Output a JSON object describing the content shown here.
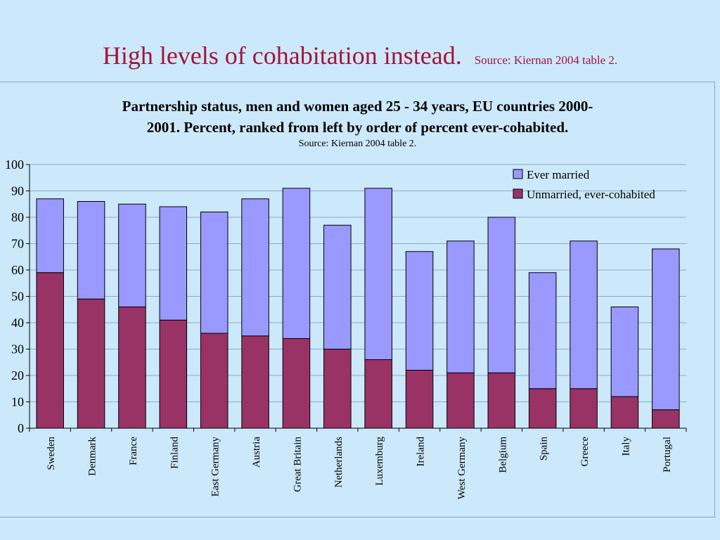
{
  "slide": {
    "title": "High levels of cohabitation instead.",
    "source": "Source: Kiernan 2004 table 2."
  },
  "colors": {
    "background": "#cce9fb",
    "title": "#a3143c",
    "ever_married": "#9999ff",
    "unmarried_cohabited": "#993366"
  },
  "chart_data": {
    "type": "bar",
    "stacked": true,
    "title": "Partnership status, men and women aged 25 - 34 years, EU countries 2000-2001. Percent, ranked from left by order of percent ever-cohabited.",
    "title_lines": [
      "Partnership status, men and women aged 25 - 34 years, EU countries 2000-",
      "2001. Percent, ranked from left by order of percent ever-cohabited."
    ],
    "subtitle": "Source: Kiernan 2004 table 2.",
    "xlabel": "",
    "ylabel": "",
    "ylim": [
      0,
      100
    ],
    "yticks": [
      0,
      10,
      20,
      30,
      40,
      50,
      60,
      70,
      80,
      90,
      100
    ],
    "grid": true,
    "legend_position": "top-right",
    "categories": [
      "Sweden",
      "Denmark",
      "France",
      "Finland",
      "East Germany",
      "Austria",
      "Great Britain",
      "Netherlands",
      "Luxemburg",
      "Ireland",
      "West Germany",
      "Belgium",
      "Spain",
      "Greece",
      "Italy",
      "Portugal"
    ],
    "series": [
      {
        "name": "Unmarried, ever-cohabited",
        "color": "#993366",
        "values": [
          59,
          49,
          46,
          41,
          36,
          35,
          34,
          30,
          26,
          22,
          21,
          21,
          15,
          15,
          12,
          7
        ]
      },
      {
        "name": "Ever married",
        "color": "#9999ff",
        "values": [
          28,
          37,
          39,
          43,
          46,
          52,
          57,
          47,
          65,
          45,
          50,
          59,
          44,
          56,
          34,
          61
        ]
      }
    ],
    "legend_order": [
      "Ever married",
      "Unmarried, ever-cohabited"
    ]
  }
}
